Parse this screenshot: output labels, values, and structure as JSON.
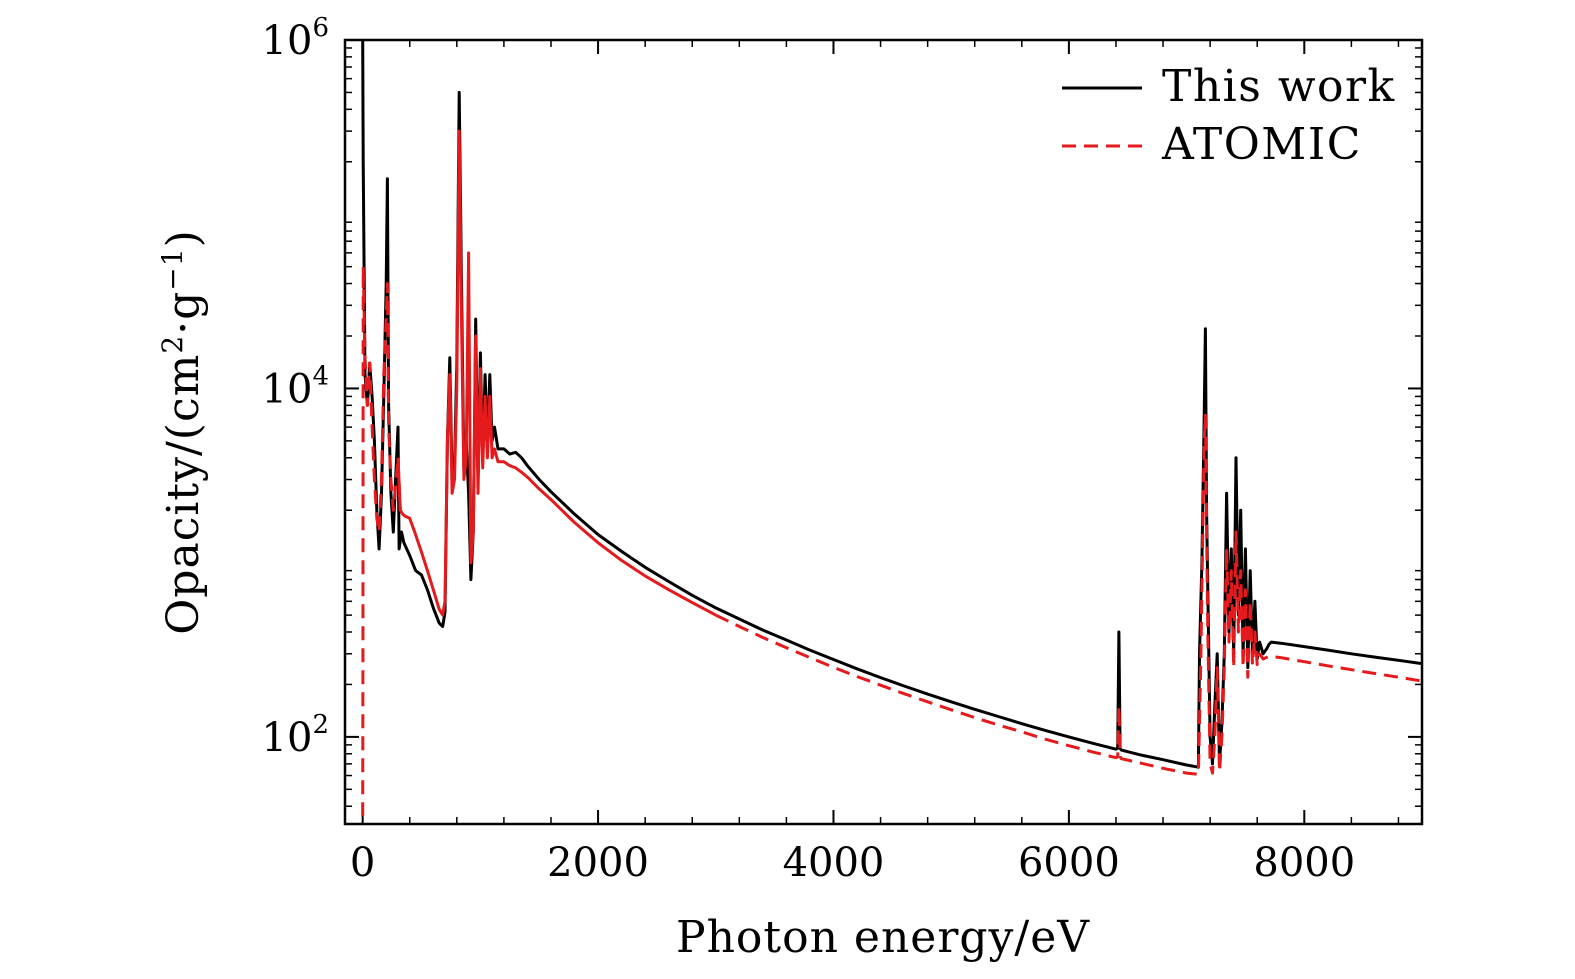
{
  "chart_data": {
    "type": "line",
    "xlabel": "Photon energy/eV",
    "ylabel_parts": {
      "prefix": "Opacity/(cm",
      "sup1": "2",
      "mid": "·g",
      "sup2": "−1",
      "suffix": ")"
    },
    "xlim": [
      -150,
      9000
    ],
    "ylim_log10": [
      1.5,
      6.0
    ],
    "yscale": "log",
    "x_ticks": [
      0,
      2000,
      4000,
      6000,
      8000
    ],
    "x_tick_labels": [
      "0",
      "2000",
      "4000",
      "6000",
      "8000"
    ],
    "y_ticks": [
      {
        "base": "10",
        "exp": "2",
        "log10": 2
      },
      {
        "base": "10",
        "exp": "4",
        "log10": 4
      },
      {
        "base": "10",
        "exp": "6",
        "log10": 6
      }
    ],
    "legend_position": "top-right",
    "series": [
      {
        "name": "This work",
        "color": "#000000",
        "style": "solid",
        "points": [
          [
            0,
            1000000
          ],
          [
            5,
            200000
          ],
          [
            20,
            12000
          ],
          [
            40,
            8000
          ],
          [
            60,
            14000
          ],
          [
            80,
            9000
          ],
          [
            100,
            5000
          ],
          [
            120,
            2000
          ],
          [
            140,
            1200
          ],
          [
            160,
            2500
          ],
          [
            180,
            9000
          ],
          [
            200,
            40000
          ],
          [
            210,
            160000
          ],
          [
            220,
            8000
          ],
          [
            240,
            2500
          ],
          [
            260,
            1500
          ],
          [
            280,
            3000
          ],
          [
            300,
            6000
          ],
          [
            310,
            1200
          ],
          [
            330,
            1500
          ],
          [
            350,
            1300
          ],
          [
            400,
            1100
          ],
          [
            450,
            900
          ],
          [
            500,
            850
          ],
          [
            550,
            700
          ],
          [
            600,
            550
          ],
          [
            650,
            450
          ],
          [
            680,
            430
          ],
          [
            700,
            520
          ],
          [
            720,
            5000
          ],
          [
            740,
            15000
          ],
          [
            760,
            3000
          ],
          [
            780,
            3500
          ],
          [
            800,
            14000
          ],
          [
            820,
            500000
          ],
          [
            840,
            40000
          ],
          [
            860,
            3500
          ],
          [
            880,
            5000
          ],
          [
            900,
            2500
          ],
          [
            920,
            800
          ],
          [
            940,
            1500
          ],
          [
            960,
            25000
          ],
          [
            980,
            3000
          ],
          [
            1000,
            16000
          ],
          [
            1020,
            4000
          ],
          [
            1040,
            12000
          ],
          [
            1060,
            4500
          ],
          [
            1080,
            12000
          ],
          [
            1100,
            5000
          ],
          [
            1120,
            6000
          ],
          [
            1150,
            4500
          ],
          [
            1200,
            4500
          ],
          [
            1250,
            4200
          ],
          [
            1300,
            4300
          ],
          [
            1350,
            4000
          ],
          [
            1400,
            3600
          ],
          [
            1500,
            3000
          ],
          [
            1600,
            2550
          ],
          [
            1800,
            1900
          ],
          [
            2000,
            1450
          ],
          [
            2200,
            1160
          ],
          [
            2400,
            940
          ],
          [
            2600,
            780
          ],
          [
            2800,
            650
          ],
          [
            3000,
            550
          ],
          [
            3200,
            475
          ],
          [
            3400,
            410
          ],
          [
            3600,
            360
          ],
          [
            3800,
            315
          ],
          [
            4000,
            278
          ],
          [
            4200,
            246
          ],
          [
            4400,
            219
          ],
          [
            4600,
            196
          ],
          [
            4800,
            176
          ],
          [
            5000,
            159
          ],
          [
            5200,
            144
          ],
          [
            5400,
            131
          ],
          [
            5600,
            119
          ],
          [
            5800,
            109
          ],
          [
            6000,
            100
          ],
          [
            6200,
            92
          ],
          [
            6400,
            85
          ],
          [
            6415,
            86
          ],
          [
            6425,
            400
          ],
          [
            6435,
            86
          ],
          [
            6445,
            84
          ],
          [
            6600,
            79
          ],
          [
            6800,
            74
          ],
          [
            7000,
            69
          ],
          [
            7100,
            67
          ],
          [
            7110,
            300
          ],
          [
            7130,
            1000
          ],
          [
            7150,
            7000
          ],
          [
            7160,
            22000
          ],
          [
            7170,
            2000
          ],
          [
            7180,
            700
          ],
          [
            7200,
            100
          ],
          [
            7220,
            70
          ],
          [
            7240,
            150
          ],
          [
            7260,
            300
          ],
          [
            7280,
            70
          ],
          [
            7300,
            120
          ],
          [
            7320,
            300
          ],
          [
            7340,
            2500
          ],
          [
            7360,
            400
          ],
          [
            7380,
            1200
          ],
          [
            7400,
            300
          ],
          [
            7420,
            4000
          ],
          [
            7440,
            500
          ],
          [
            7460,
            2000
          ],
          [
            7480,
            300
          ],
          [
            7500,
            1200
          ],
          [
            7520,
            250
          ],
          [
            7540,
            900
          ],
          [
            7560,
            300
          ],
          [
            7580,
            600
          ],
          [
            7600,
            280
          ],
          [
            7620,
            350
          ],
          [
            7650,
            300
          ],
          [
            7680,
            320
          ],
          [
            7700,
            340
          ],
          [
            7720,
            350
          ],
          [
            7800,
            345
          ],
          [
            8000,
            330
          ],
          [
            8200,
            315
          ],
          [
            8400,
            300
          ],
          [
            8600,
            287
          ],
          [
            8800,
            275
          ],
          [
            9000,
            263
          ]
        ]
      },
      {
        "name": "ATOMIC",
        "color": "#e41a1c",
        "style": "dashed-solid",
        "points": [
          [
            0,
            35
          ],
          [
            2,
            200
          ],
          [
            5,
            50000
          ],
          [
            20,
            15000
          ],
          [
            40,
            8000
          ],
          [
            60,
            14000
          ],
          [
            80,
            6000
          ],
          [
            100,
            3000
          ],
          [
            120,
            1800
          ],
          [
            140,
            1500
          ],
          [
            160,
            3000
          ],
          [
            180,
            12000
          ],
          [
            200,
            25000
          ],
          [
            210,
            40000
          ],
          [
            220,
            6000
          ],
          [
            240,
            3000
          ],
          [
            260,
            2000
          ],
          [
            280,
            2800
          ],
          [
            300,
            4000
          ],
          [
            320,
            2000
          ],
          [
            340,
            1900
          ],
          [
            360,
            1850
          ],
          [
            400,
            1800
          ],
          [
            450,
            1450
          ],
          [
            500,
            1150
          ],
          [
            550,
            900
          ],
          [
            600,
            700
          ],
          [
            650,
            540
          ],
          [
            680,
            500
          ],
          [
            700,
            600
          ],
          [
            720,
            5000
          ],
          [
            740,
            12000
          ],
          [
            760,
            2500
          ],
          [
            780,
            3000
          ],
          [
            800,
            10000
          ],
          [
            820,
            300000
          ],
          [
            840,
            25000
          ],
          [
            860,
            3000
          ],
          [
            880,
            4000
          ],
          [
            900,
            60000
          ],
          [
            920,
            1000
          ],
          [
            940,
            1500
          ],
          [
            960,
            20000
          ],
          [
            980,
            2500
          ],
          [
            1000,
            13000
          ],
          [
            1020,
            3500
          ],
          [
            1040,
            9000
          ],
          [
            1060,
            4000
          ],
          [
            1080,
            9000
          ],
          [
            1100,
            4000
          ],
          [
            1120,
            4500
          ],
          [
            1150,
            3800
          ],
          [
            1200,
            3800
          ],
          [
            1250,
            3600
          ],
          [
            1300,
            3500
          ],
          [
            1350,
            3300
          ],
          [
            1400,
            3100
          ],
          [
            1500,
            2650
          ],
          [
            1600,
            2300
          ],
          [
            1800,
            1700
          ],
          [
            2000,
            1300
          ],
          [
            2200,
            1030
          ],
          [
            2400,
            840
          ],
          [
            2600,
            700
          ],
          [
            2800,
            590
          ],
          [
            3000,
            500
          ],
          [
            3200,
            430
          ],
          [
            3400,
            372
          ],
          [
            3600,
            325
          ],
          [
            3800,
            285
          ],
          [
            4000,
            251
          ],
          [
            4200,
            222
          ],
          [
            4400,
            198
          ],
          [
            4600,
            177
          ],
          [
            4800,
            159
          ],
          [
            5000,
            143
          ],
          [
            5200,
            129
          ],
          [
            5400,
            117
          ],
          [
            5600,
            107
          ],
          [
            5800,
            97
          ],
          [
            6000,
            89
          ],
          [
            6200,
            82
          ],
          [
            6400,
            76
          ],
          [
            6415,
            77
          ],
          [
            6425,
            150
          ],
          [
            6435,
            77
          ],
          [
            6445,
            75
          ],
          [
            6600,
            71
          ],
          [
            6800,
            66
          ],
          [
            7000,
            62
          ],
          [
            7100,
            61
          ],
          [
            7120,
            250
          ],
          [
            7150,
            5000
          ],
          [
            7160,
            7000
          ],
          [
            7170,
            1500
          ],
          [
            7180,
            400
          ],
          [
            7200,
            70
          ],
          [
            7220,
            62
          ],
          [
            7240,
            100
          ],
          [
            7260,
            250
          ],
          [
            7280,
            63
          ],
          [
            7300,
            100
          ],
          [
            7320,
            250
          ],
          [
            7340,
            1200
          ],
          [
            7360,
            350
          ],
          [
            7380,
            900
          ],
          [
            7400,
            250
          ],
          [
            7420,
            1500
          ],
          [
            7440,
            400
          ],
          [
            7460,
            900
          ],
          [
            7480,
            250
          ],
          [
            7500,
            700
          ],
          [
            7520,
            220
          ],
          [
            7540,
            600
          ],
          [
            7560,
            260
          ],
          [
            7580,
            400
          ],
          [
            7600,
            260
          ],
          [
            7620,
            300
          ],
          [
            7650,
            280
          ],
          [
            7700,
            290
          ],
          [
            7800,
            285
          ],
          [
            8000,
            270
          ],
          [
            8200,
            256
          ],
          [
            8400,
            243
          ],
          [
            8600,
            231
          ],
          [
            8800,
            220
          ],
          [
            9000,
            209
          ]
        ],
        "solid_until_x": 3000
      }
    ]
  }
}
